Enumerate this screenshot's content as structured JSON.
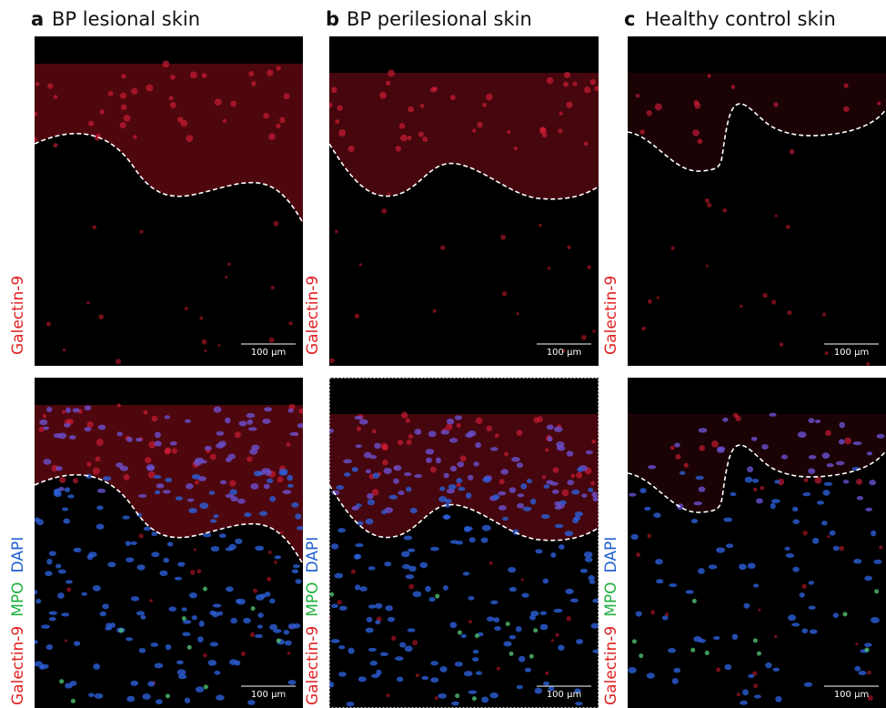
{
  "panels": [
    {
      "letter": "a",
      "title": "BP lesional skin",
      "top": {
        "stain": "Galectin-9",
        "scale_bar": "100 μm"
      },
      "bottom": {
        "stains": [
          "Galectin-9",
          "MPO",
          "DAPI"
        ],
        "scale_bar": "100 μm"
      }
    },
    {
      "letter": "b",
      "title": "BP perilesional skin",
      "top": {
        "stain": "Galectin-9",
        "scale_bar": "100 μm"
      },
      "bottom": {
        "stains": [
          "Galectin-9",
          "MPO",
          "DAPI"
        ],
        "scale_bar": "100 μm"
      }
    },
    {
      "letter": "c",
      "title": "Healthy control skin",
      "top": {
        "stain": "Galectin-9",
        "scale_bar": "100 μm"
      },
      "bottom": {
        "stains": [
          "Galectin-9",
          "MPO",
          "DAPI"
        ],
        "scale_bar": "100 μm"
      }
    }
  ]
}
